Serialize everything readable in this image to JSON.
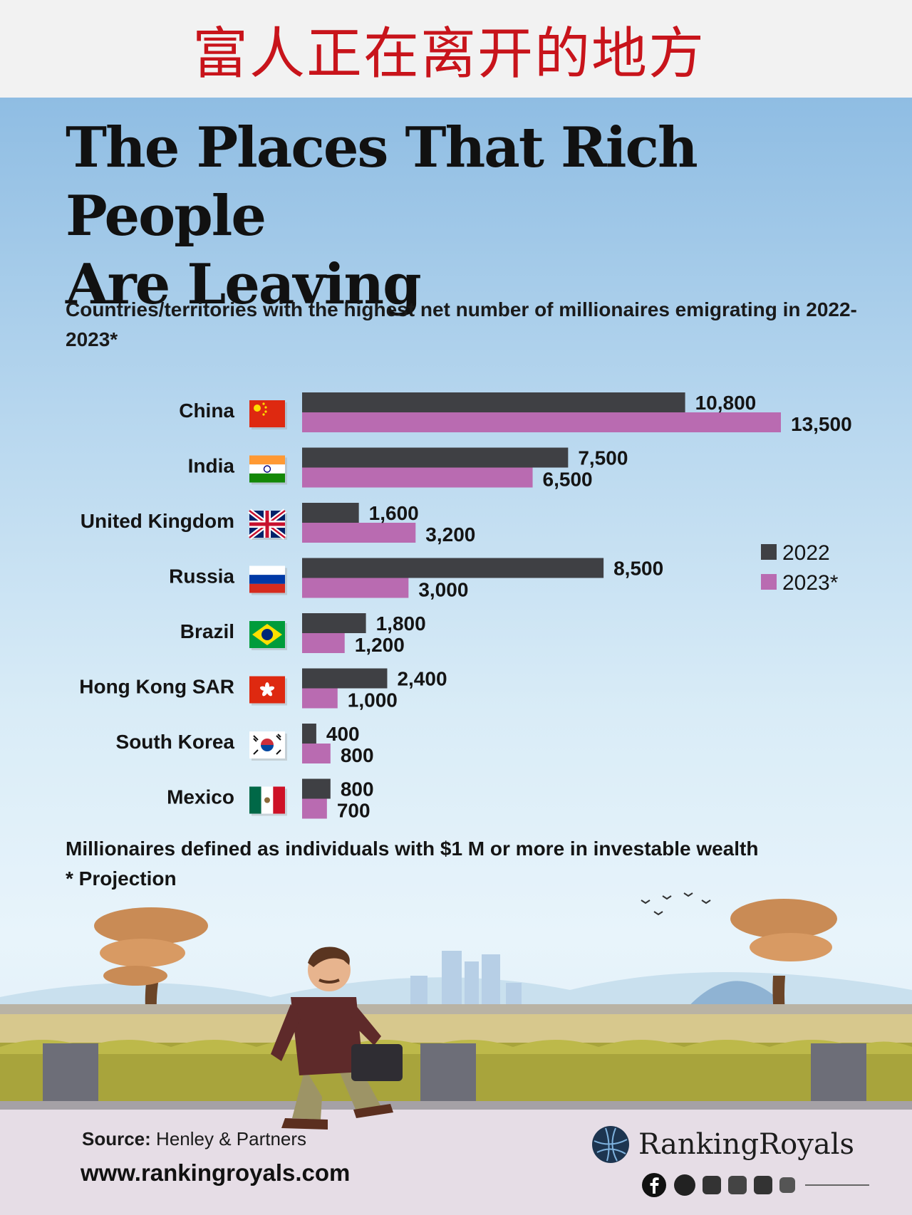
{
  "banner_title": "富人正在离开的地方",
  "title_line1": "The Places That Rich People",
  "title_line2": "Are Leaving",
  "subtitle": "Countries/territories with the highest net number of millionaires emigrating in 2022-2023*",
  "footnote_definition": "Millionaires defined as individuals with $1 M or more in investable wealth",
  "footnote_projection": "* Projection",
  "source_label": "Source:",
  "source_value": "Henley & Partners",
  "website": "www.rankingroyals.com",
  "brand": "RankingRoyals",
  "social_icon": "facebook-icon",
  "colors": {
    "bar_2022": "#3f4044",
    "bar_2023": "#b96bb1",
    "banner_text": "#c8141b"
  },
  "chart_data": {
    "type": "bar",
    "orientation": "horizontal",
    "title": "The Places That Rich People Are Leaving",
    "subtitle": "Countries/territories with the highest net number of millionaires emigrating in 2022-2023*",
    "categories": [
      "China",
      "India",
      "United Kingdom",
      "Russia",
      "Brazil",
      "Hong Kong SAR",
      "South Korea",
      "Mexico"
    ],
    "flags": [
      "china-flag-icon",
      "india-flag-icon",
      "uk-flag-icon",
      "russia-flag-icon",
      "brazil-flag-icon",
      "hongkong-flag-icon",
      "south-korea-flag-icon",
      "mexico-flag-icon"
    ],
    "series": [
      {
        "name": "2022",
        "values": [
          10800,
          7500,
          1600,
          8500,
          1800,
          2400,
          400,
          800
        ],
        "labels": [
          "10,800",
          "7,500",
          "1,600",
          "8,500",
          "1,800",
          "2,400",
          "400",
          "800"
        ]
      },
      {
        "name": "2023*",
        "values": [
          13500,
          6500,
          3200,
          3000,
          1200,
          1000,
          800,
          700
        ],
        "labels": [
          "13,500",
          "6,500",
          "3,200",
          "3,000",
          "1,200",
          "1,000",
          "800",
          "700"
        ]
      }
    ],
    "xlim": [
      0,
      13500
    ],
    "legend": "right",
    "grid": false
  }
}
